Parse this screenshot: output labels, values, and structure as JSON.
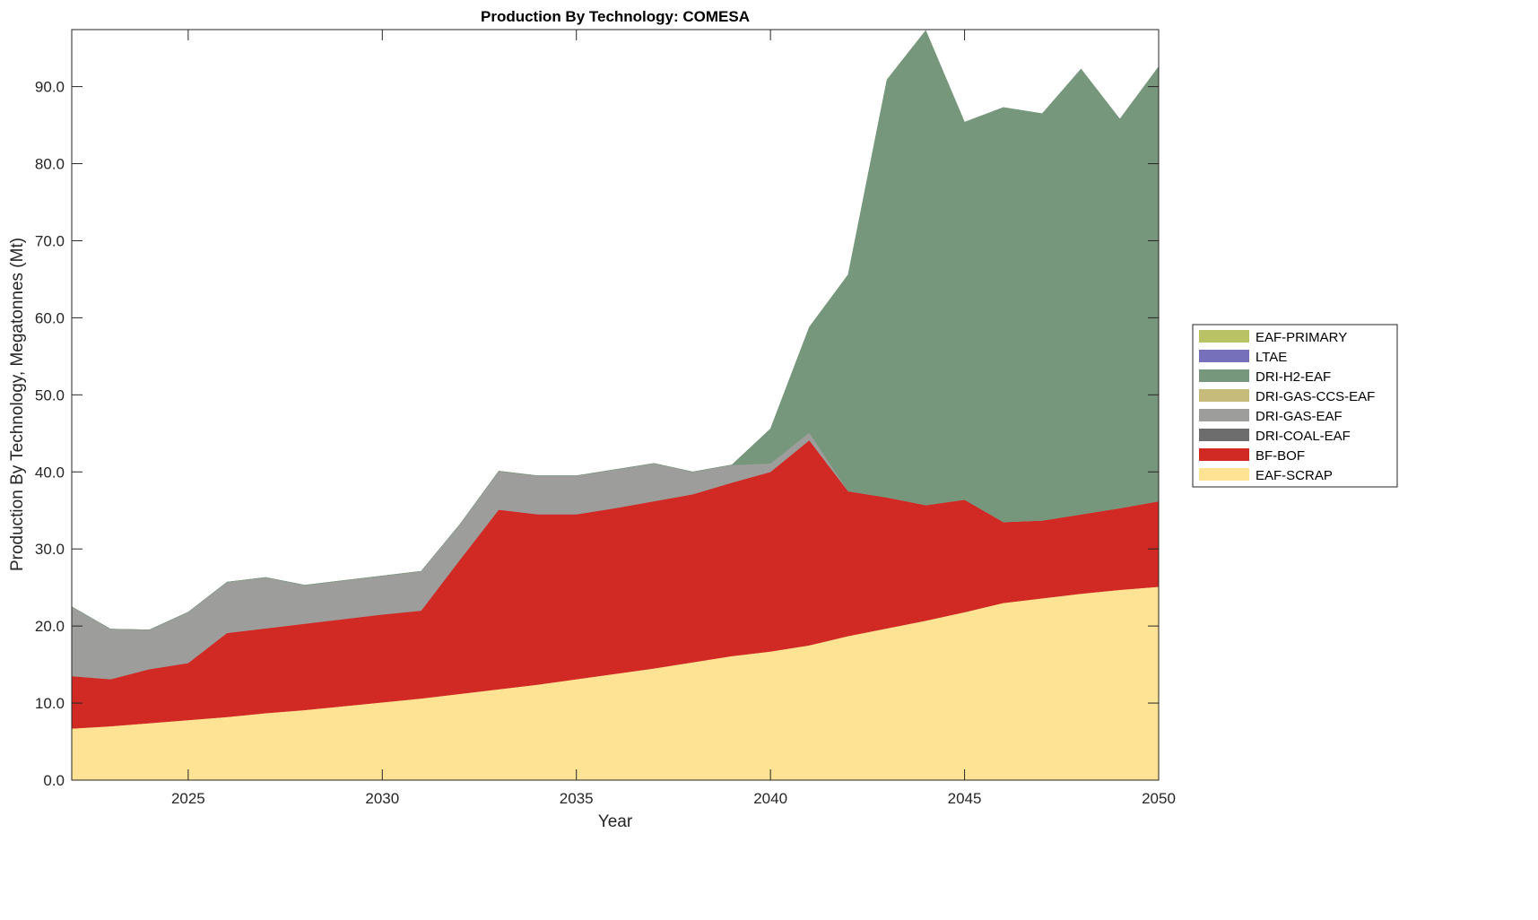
{
  "chart_data": {
    "type": "area",
    "stacked": true,
    "title": "Production By Technology: COMESA",
    "xlabel": "Year",
    "ylabel": "Production By Technology, Megatonnes (Mt)",
    "xlim": [
      2022,
      2050
    ],
    "ylim": [
      0,
      97.4
    ],
    "xticks": [
      2025,
      2030,
      2035,
      2040,
      2045,
      2050
    ],
    "yticks": [
      "0.0",
      "10.0",
      "20.0",
      "30.0",
      "40.0",
      "50.0",
      "60.0",
      "70.0",
      "80.0",
      "90.0"
    ],
    "legend_position": "right",
    "x": [
      2022,
      2023,
      2024,
      2025,
      2026,
      2027,
      2028,
      2029,
      2030,
      2031,
      2032,
      2033,
      2034,
      2035,
      2036,
      2037,
      2038,
      2039,
      2040,
      2041,
      2042,
      2043,
      2044,
      2045,
      2046,
      2047,
      2048,
      2049,
      2050
    ],
    "series": [
      {
        "name": "EAF-SCRAP",
        "color": "#fee394",
        "values": [
          6.7,
          7.0,
          7.4,
          7.8,
          8.2,
          8.7,
          9.1,
          9.6,
          10.1,
          10.6,
          11.2,
          11.8,
          12.4,
          13.1,
          13.8,
          14.5,
          15.3,
          16.1,
          16.7,
          17.5,
          18.7,
          19.7,
          20.7,
          21.8,
          23.0,
          23.6,
          24.2,
          24.7,
          25.1
        ]
      },
      {
        "name": "BF-BOF",
        "color": "#d12a24",
        "values": [
          6.8,
          6.1,
          7.0,
          7.4,
          10.9,
          11.0,
          11.2,
          11.3,
          11.4,
          11.4,
          17.4,
          23.3,
          22.1,
          21.4,
          21.5,
          21.7,
          21.8,
          22.5,
          23.3,
          26.6,
          18.8,
          17.0,
          15.0,
          14.6,
          10.5,
          10.1,
          10.3,
          10.6,
          11.1
        ]
      },
      {
        "name": "DRI-COAL-EAF",
        "color": "#6d6d6d",
        "values": [
          0,
          0,
          0,
          0,
          0,
          0,
          0,
          0,
          0,
          0,
          0,
          0,
          0,
          0,
          0,
          0,
          0,
          0,
          0,
          0,
          0,
          0,
          0,
          0,
          0,
          0,
          0,
          0,
          0
        ]
      },
      {
        "name": "DRI-GAS-EAF",
        "color": "#9d9d9b",
        "values": [
          9.0,
          6.5,
          5.1,
          6.6,
          6.6,
          6.6,
          5.0,
          5.0,
          5.0,
          5.1,
          4.6,
          5.0,
          5.0,
          5.0,
          5.0,
          4.9,
          2.9,
          2.3,
          1.1,
          1.0,
          0,
          0,
          0,
          0,
          0,
          0,
          0,
          0,
          0
        ]
      },
      {
        "name": "DRI-GAS-CCS-EAF",
        "color": "#c6bb7a",
        "values": [
          0,
          0,
          0,
          0,
          0,
          0,
          0,
          0,
          0,
          0,
          0,
          0,
          0,
          0,
          0,
          0,
          0,
          0,
          0,
          0,
          0,
          0,
          0,
          0,
          0,
          0,
          0,
          0,
          0
        ]
      },
      {
        "name": "DRI-H2-EAF",
        "color": "#76977c",
        "values": [
          0,
          0,
          0,
          0,
          0,
          0,
          0,
          0,
          0,
          0,
          0,
          0,
          0,
          0,
          0,
          0,
          0,
          0,
          4.5,
          13.7,
          28.1,
          54.2,
          61.6,
          49.0,
          53.8,
          52.8,
          57.8,
          50.5,
          56.4
        ]
      },
      {
        "name": "LTAE",
        "color": "#7570b9",
        "values": [
          0,
          0,
          0,
          0,
          0,
          0,
          0,
          0,
          0,
          0,
          0,
          0,
          0,
          0,
          0,
          0,
          0,
          0,
          0,
          0,
          0,
          0,
          0,
          0,
          0,
          0,
          0,
          0,
          0
        ]
      },
      {
        "name": "EAF-PRIMARY",
        "color": "#b9c264",
        "values": [
          0,
          0,
          0,
          0,
          0,
          0,
          0,
          0,
          0,
          0,
          0,
          0,
          0,
          0,
          0,
          0,
          0,
          0,
          0,
          0,
          0,
          0,
          0,
          0,
          0,
          0,
          0,
          0,
          0
        ]
      }
    ]
  }
}
